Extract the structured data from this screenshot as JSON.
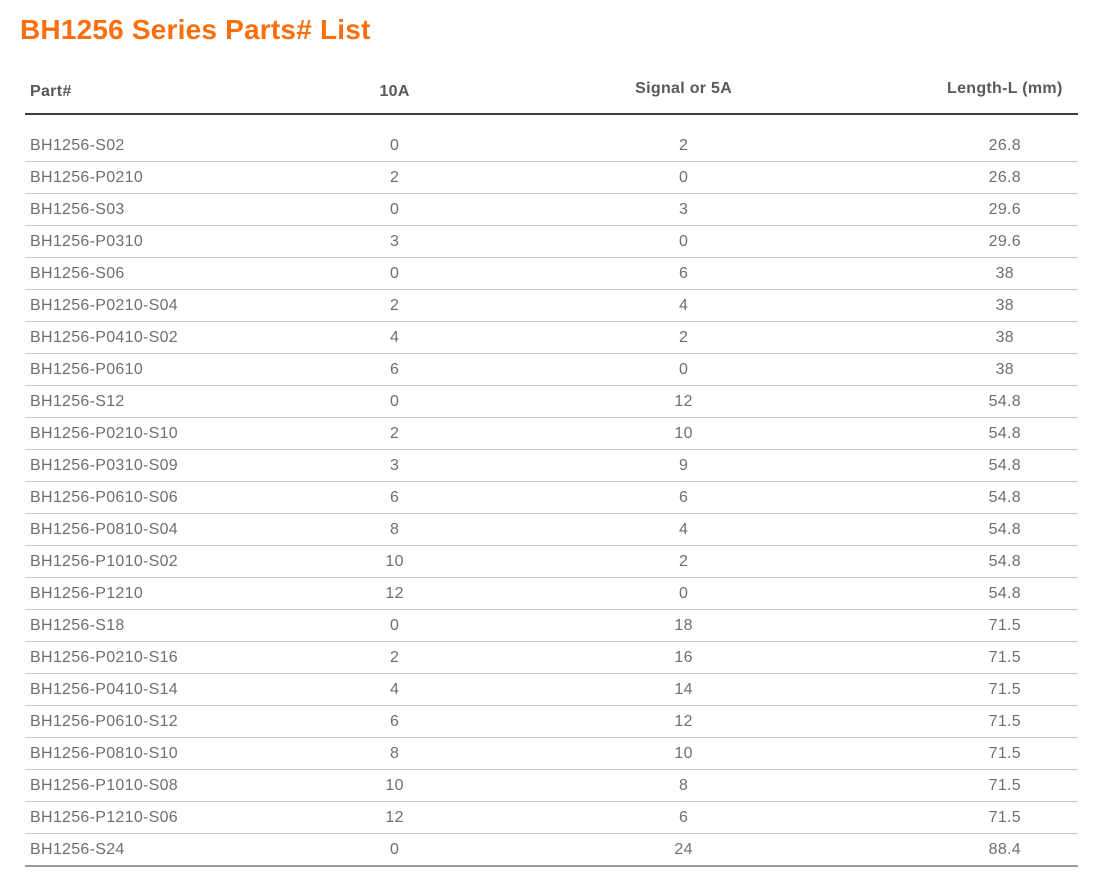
{
  "page": {
    "title": "BH1256 Series Parts# List"
  },
  "colors": {
    "title_accent": "#F96E0D",
    "header_text": "#595959",
    "body_text": "#6F6F6F",
    "header_rule": "#3F3F3F",
    "row_rule": "#CBCBCB",
    "bottom_rule": "#9B9B9B"
  },
  "table": {
    "columns": [
      "Part#",
      "10A",
      "Signal or 5A",
      "Length-L (mm)"
    ],
    "rows": [
      [
        "BH1256-S02",
        "0",
        "2",
        "26.8"
      ],
      [
        "BH1256-P0210",
        "2",
        "0",
        "26.8"
      ],
      [
        "BH1256-S03",
        "0",
        "3",
        "29.6"
      ],
      [
        "BH1256-P0310",
        "3",
        "0",
        "29.6"
      ],
      [
        "BH1256-S06",
        "0",
        "6",
        "38"
      ],
      [
        "BH1256-P0210-S04",
        "2",
        "4",
        "38"
      ],
      [
        "BH1256-P0410-S02",
        "4",
        "2",
        "38"
      ],
      [
        "BH1256-P0610",
        "6",
        "0",
        "38"
      ],
      [
        "BH1256-S12",
        "0",
        "12",
        "54.8"
      ],
      [
        "BH1256-P0210-S10",
        "2",
        "10",
        "54.8"
      ],
      [
        "BH1256-P0310-S09",
        "3",
        "9",
        "54.8"
      ],
      [
        "BH1256-P0610-S06",
        "6",
        "6",
        "54.8"
      ],
      [
        "BH1256-P0810-S04",
        "8",
        "4",
        "54.8"
      ],
      [
        "BH1256-P1010-S02",
        "10",
        "2",
        "54.8"
      ],
      [
        "BH1256-P1210",
        "12",
        "0",
        "54.8"
      ],
      [
        "BH1256-S18",
        "0",
        "18",
        "71.5"
      ],
      [
        "BH1256-P0210-S16",
        "2",
        "16",
        "71.5"
      ],
      [
        "BH1256-P0410-S14",
        "4",
        "14",
        "71.5"
      ],
      [
        "BH1256-P0610-S12",
        "6",
        "12",
        "71.5"
      ],
      [
        "BH1256-P0810-S10",
        "8",
        "10",
        "71.5"
      ],
      [
        "BH1256-P1010-S08",
        "10",
        "8",
        "71.5"
      ],
      [
        "BH1256-P1210-S06",
        "12",
        "6",
        "71.5"
      ],
      [
        "BH1256-S24",
        "0",
        "24",
        "88.4"
      ]
    ]
  }
}
